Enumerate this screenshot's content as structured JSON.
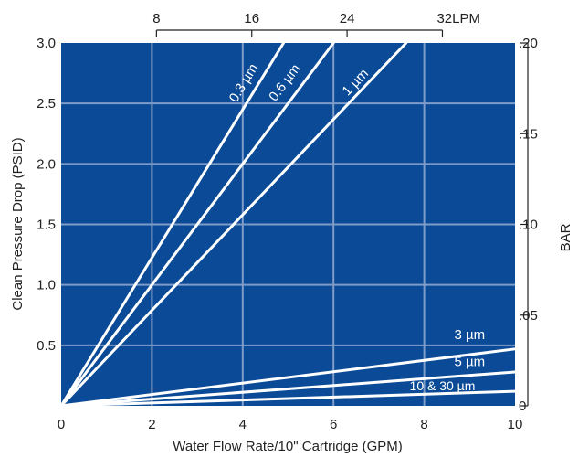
{
  "chart_data": {
    "type": "line",
    "xlabel": "Water Flow Rate/10\" Cartridge (GPM)",
    "ylabel": "Clean Pressure Drop (PSID)",
    "y2label": "BAR",
    "xlim": [
      0,
      10
    ],
    "ylim": [
      0,
      3.0
    ],
    "y2lim": [
      0,
      0.2
    ],
    "x_ticks": [
      "0",
      "2",
      "4",
      "6",
      "8",
      "10"
    ],
    "y_ticks": [
      "0.5",
      "1.0",
      "1.5",
      "2.0",
      "2.5",
      "3.0"
    ],
    "y2_ticks": [
      "0",
      ".05",
      ".10",
      ".15",
      ".20"
    ],
    "x2_ticks": [
      {
        "label": "8",
        "gpm": 2.1
      },
      {
        "label": "16",
        "gpm": 4.2
      },
      {
        "label": "24",
        "gpm": 6.3
      },
      {
        "label": "32LPM",
        "gpm": 8.4
      }
    ],
    "grid": true,
    "colors": {
      "plot_background": "#0a4a96",
      "grid": "#7f9dc8",
      "series": "#ffffff"
    },
    "series": [
      {
        "name": "0.3 µm",
        "x": [
          0,
          4.9
        ],
        "y": [
          0,
          3.0
        ],
        "label_pos": [
          4.1,
          2.65
        ]
      },
      {
        "name": "0.6 µm",
        "x": [
          0,
          6.0
        ],
        "y": [
          0,
          3.0
        ],
        "label_pos": [
          5.0,
          2.65
        ]
      },
      {
        "name": "1 µm",
        "x": [
          0,
          7.6
        ],
        "y": [
          0,
          3.0
        ],
        "label_pos": [
          6.55,
          2.65
        ]
      },
      {
        "name": "3 µm",
        "x": [
          0,
          10
        ],
        "y": [
          0,
          0.47
        ],
        "label_pos": [
          9.0,
          0.55
        ]
      },
      {
        "name": "5 µm",
        "x": [
          0,
          10
        ],
        "y": [
          0,
          0.28
        ],
        "label_pos": [
          9.0,
          0.33
        ]
      },
      {
        "name": "10 & 30 µm",
        "x": [
          0,
          10
        ],
        "y": [
          0,
          0.12
        ],
        "label_pos": [
          8.4,
          0.13
        ]
      }
    ]
  }
}
